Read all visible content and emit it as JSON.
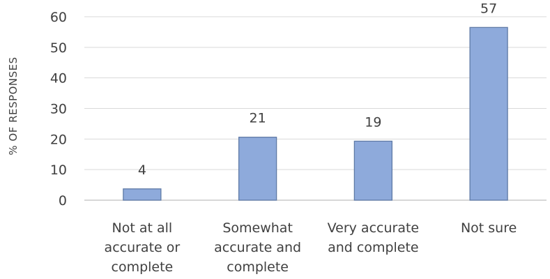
{
  "chart_data": {
    "type": "bar",
    "title": "",
    "xlabel": "",
    "ylabel": "% OF RESPONSES",
    "categories": [
      [
        "Not at all",
        "accurate or",
        "complete"
      ],
      [
        "Somewhat",
        "accurate and",
        "complete"
      ],
      [
        "Very accurate",
        "and complete"
      ],
      [
        "Not sure"
      ]
    ],
    "values": [
      3.7,
      20.6,
      19.3,
      56.5
    ],
    "data_labels": [
      "4",
      "21",
      "19",
      "57"
    ],
    "ylim": [
      0,
      60
    ],
    "yticks": [
      "0",
      "10",
      "20",
      "30",
      "40",
      "50",
      "60"
    ],
    "grid": true,
    "legend": "none",
    "colors": {
      "bar_fill": "#8eaadb",
      "bar_stroke": "#5f7aa6",
      "grid": "#d9d9d9",
      "text": "#404040"
    }
  }
}
